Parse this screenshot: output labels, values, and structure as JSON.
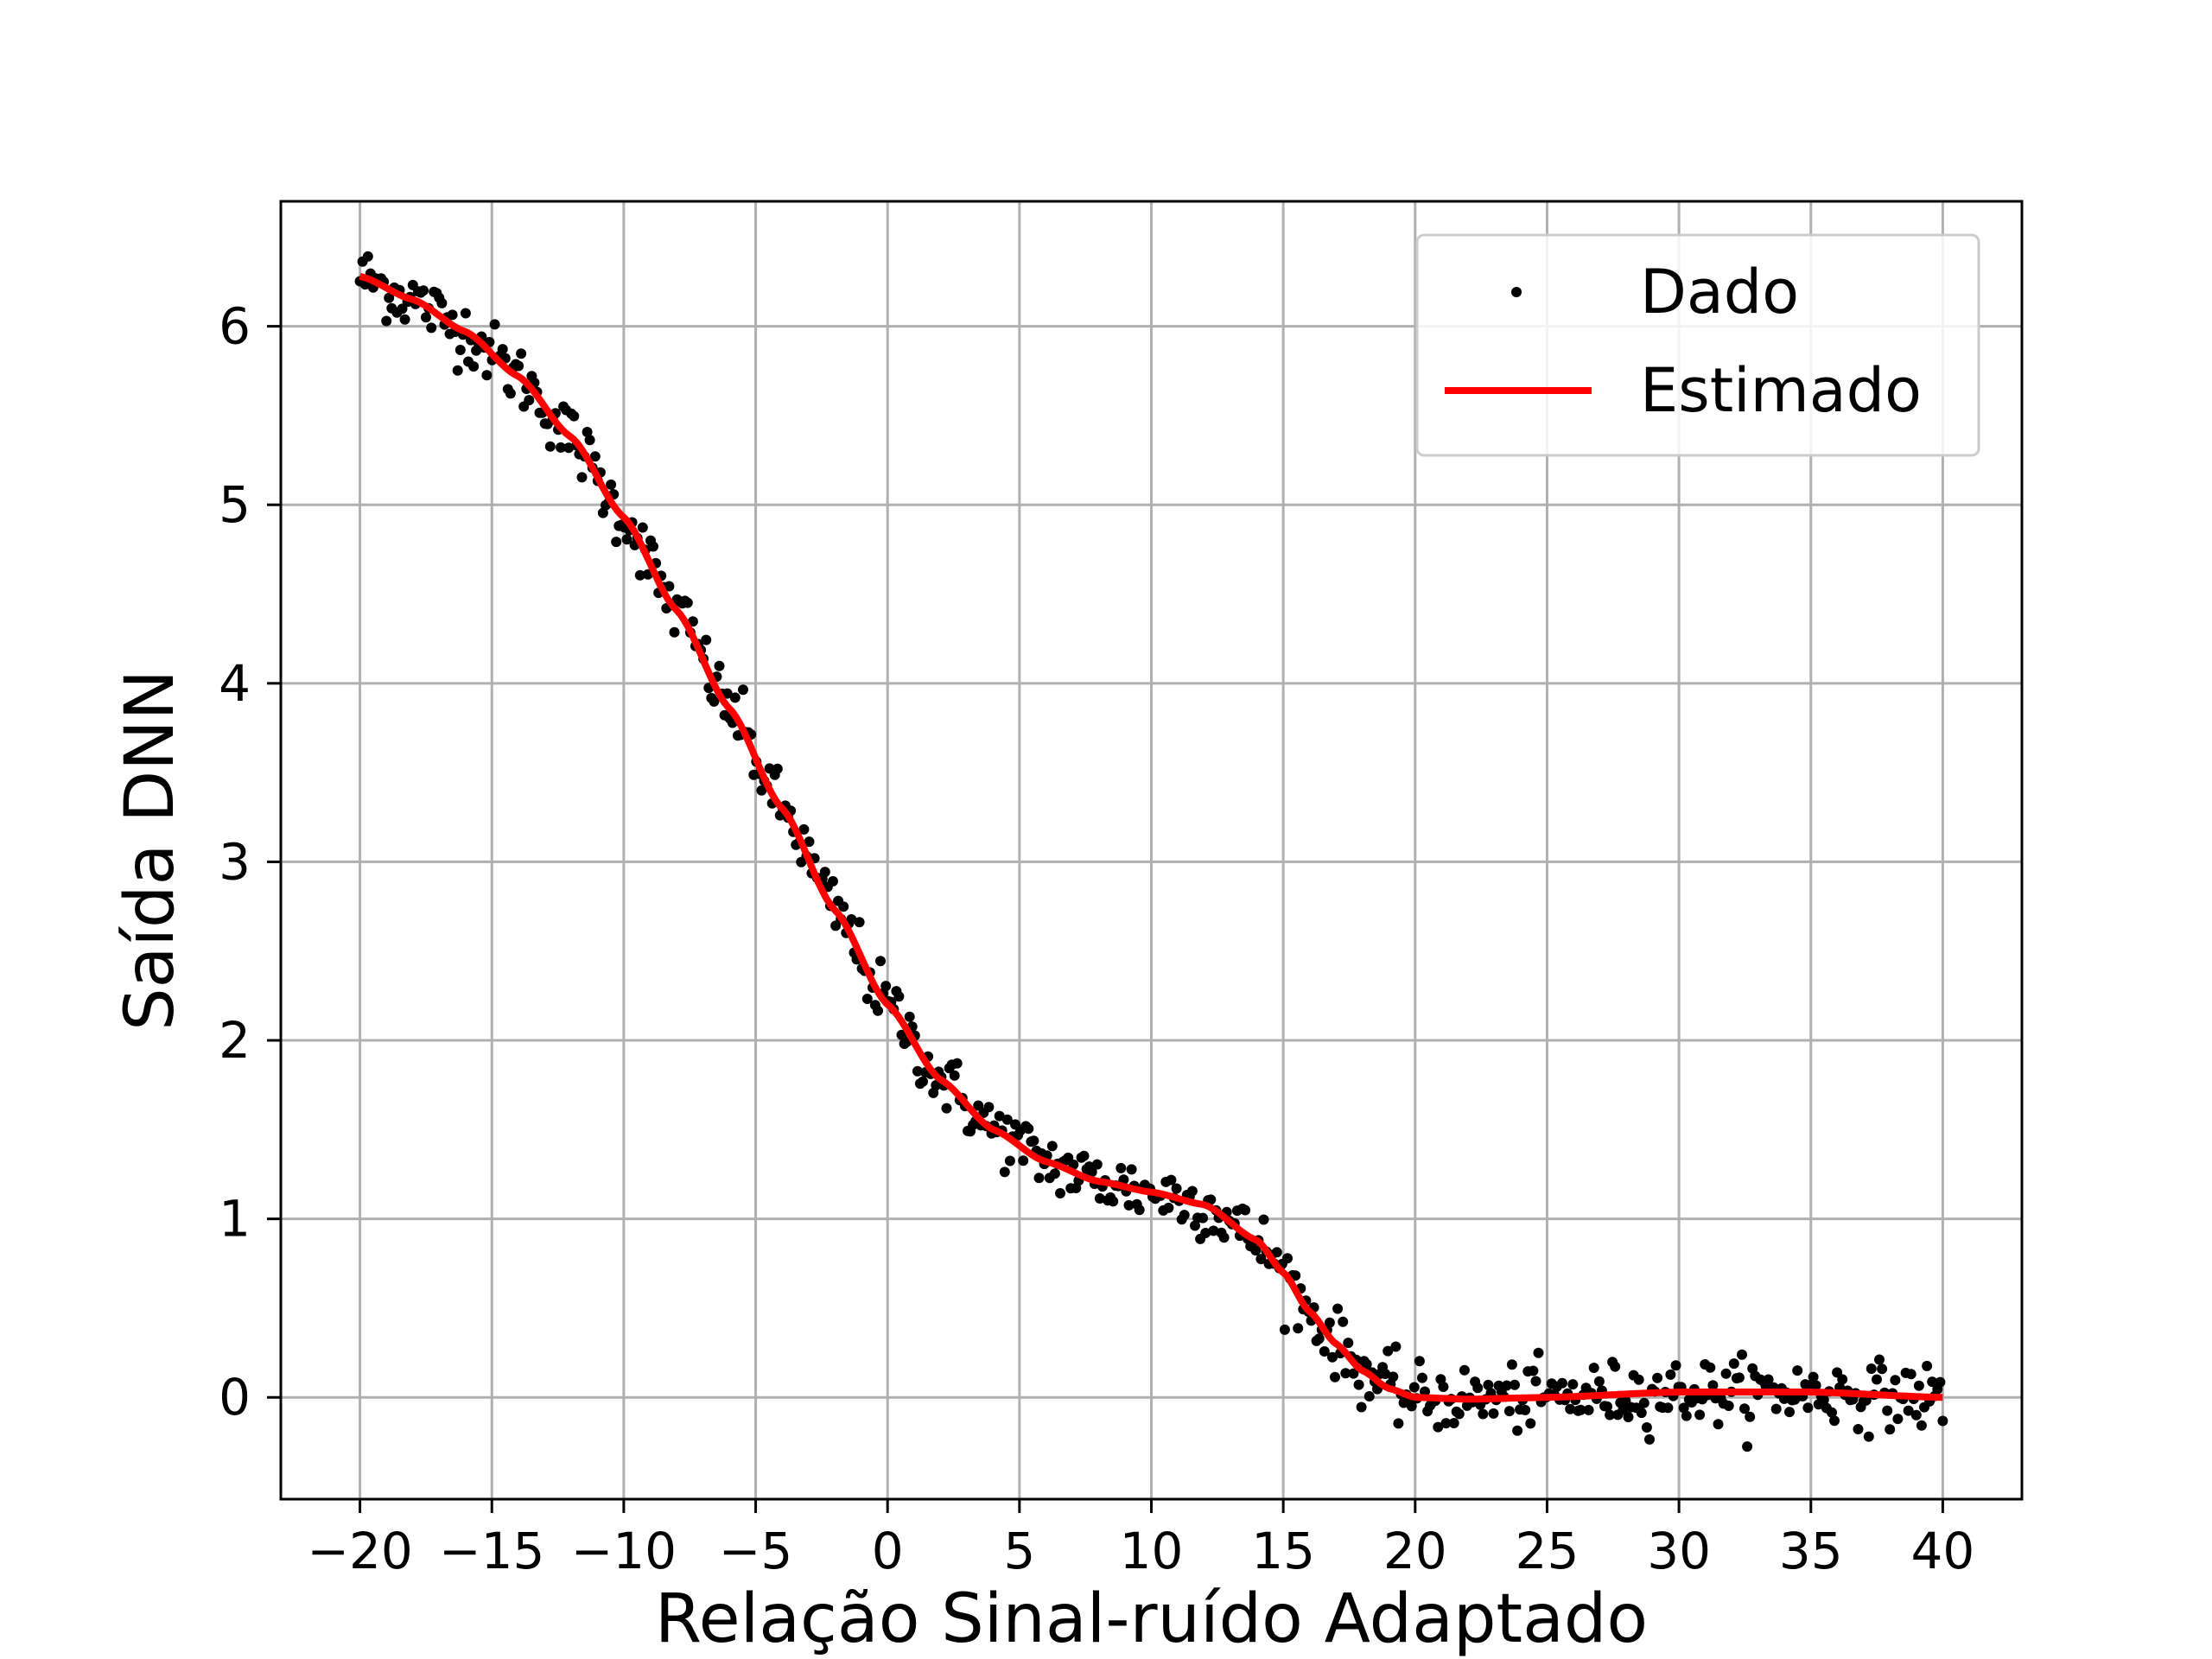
{
  "chart_data": {
    "type": "scatter",
    "title": "",
    "xlabel": "Relação Sinal-ruído Adaptado",
    "ylabel": "Saída DNN",
    "xlim": [
      -23,
      43
    ],
    "ylim": [
      -0.57,
      6.7
    ],
    "xticks": [
      -20,
      -15,
      -10,
      -5,
      0,
      5,
      10,
      15,
      20,
      25,
      30,
      35,
      40
    ],
    "xtick_labels": [
      "−20",
      "−15",
      "−10",
      "−5",
      "0",
      "5",
      "10",
      "15",
      "20",
      "25",
      "30",
      "35",
      "40"
    ],
    "yticks": [
      0,
      1,
      2,
      3,
      4,
      5,
      6
    ],
    "ytick_labels": [
      "0",
      "1",
      "2",
      "3",
      "4",
      "5",
      "6"
    ],
    "grid": true,
    "legend_position": "top-right",
    "series": [
      {
        "name": "Dado",
        "kind": "points",
        "color": "#000000",
        "x_range": [
          -20,
          40
        ],
        "n_points": 600,
        "noise_sd": 0.09,
        "note_values": "scattered observations around the estimated curve"
      },
      {
        "name": "Estimado",
        "kind": "line",
        "color": "#ff0000",
        "x": [
          -20,
          -18,
          -16,
          -14,
          -12,
          -10,
          -8,
          -6,
          -4,
          -2,
          0,
          2,
          4,
          6,
          8,
          10,
          12,
          14,
          15,
          16,
          17,
          18,
          19,
          20,
          22,
          25,
          30,
          35,
          40
        ],
        "y": [
          6.28,
          6.15,
          5.97,
          5.72,
          5.38,
          4.93,
          4.41,
          3.86,
          3.3,
          2.73,
          2.2,
          1.78,
          1.5,
          1.32,
          1.21,
          1.15,
          1.08,
          0.88,
          0.7,
          0.48,
          0.3,
          0.15,
          0.05,
          0.0,
          -0.01,
          0.0,
          0.03,
          0.03,
          0.0
        ]
      }
    ]
  }
}
